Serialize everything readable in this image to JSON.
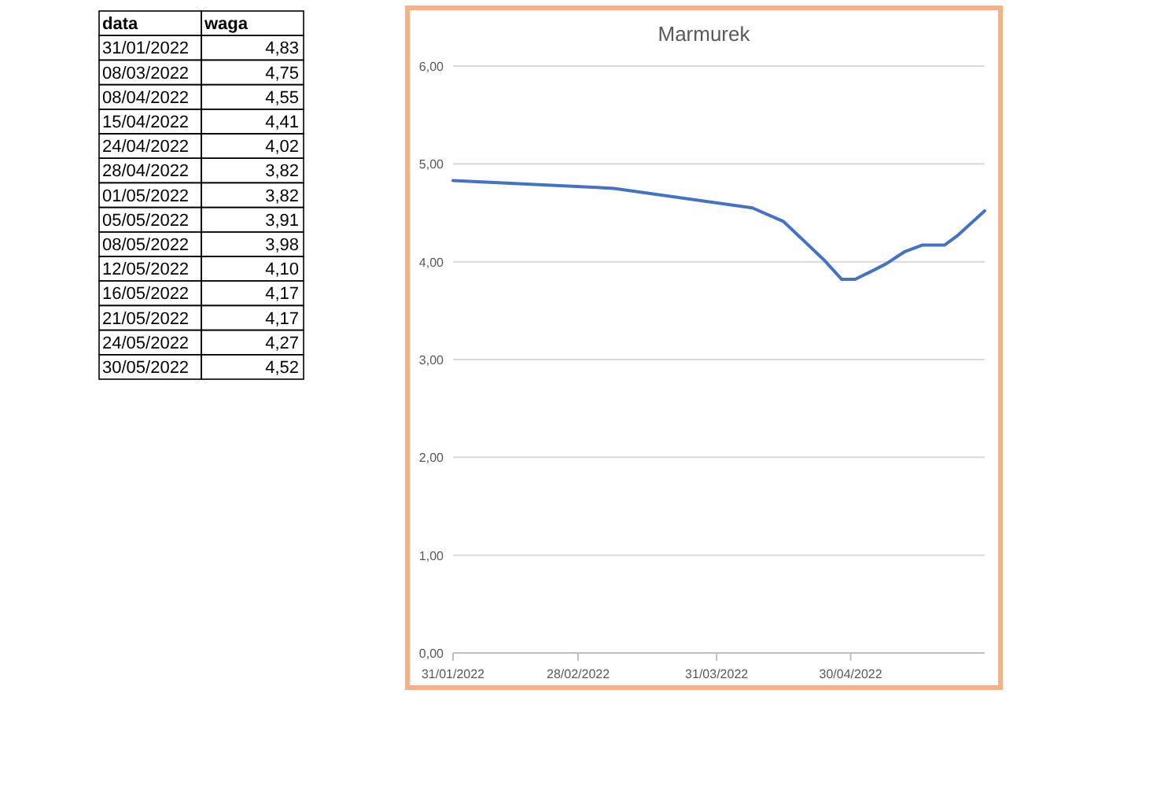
{
  "chart_data": [
    {
      "type": "other",
      "annotations": [
        "data",
        "waga"
      ],
      "categories": [
        "31/01/2022",
        "08/03/2022",
        "08/04/2022",
        "15/04/2022",
        "24/04/2022",
        "28/04/2022",
        "01/05/2022",
        "05/05/2022",
        "08/05/2022",
        "12/05/2022",
        "16/05/2022",
        "21/05/2022",
        "24/05/2022",
        "30/05/2022"
      ],
      "value_labels": [
        "4,83",
        "4,75",
        "4,55",
        "4,41",
        "4,02",
        "3,82",
        "3,82",
        "3,91",
        "3,98",
        "4,10",
        "4,17",
        "4,17",
        "4,27",
        "4,52"
      ]
    },
    {
      "type": "line",
      "title": "Marmurek",
      "x": [
        "2022-01-31",
        "2022-03-08",
        "2022-04-08",
        "2022-04-15",
        "2022-04-24",
        "2022-04-28",
        "2022-05-01",
        "2022-05-05",
        "2022-05-08",
        "2022-05-12",
        "2022-05-16",
        "2022-05-21",
        "2022-05-24",
        "2022-05-30"
      ],
      "series": [
        {
          "color": "#4472c4",
          "values": [
            4.83,
            4.75,
            4.55,
            4.41,
            4.02,
            3.82,
            3.82,
            3.91,
            3.98,
            4.1,
            4.17,
            4.17,
            4.27,
            4.52
          ]
        }
      ],
      "xlim": [
        "2022-01-31",
        "2022-05-30"
      ],
      "xticks": [
        {
          "value": "2022-01-31",
          "label": "31/01/2022"
        },
        {
          "value": "2022-02-28",
          "label": "28/02/2022"
        },
        {
          "value": "2022-03-31",
          "label": "31/03/2022"
        },
        {
          "value": "2022-04-30",
          "label": "30/04/2022"
        }
      ],
      "ylim": [
        0,
        6
      ],
      "yticks": [
        {
          "value": 0,
          "label": "0,00"
        },
        {
          "value": 1,
          "label": "1,00"
        },
        {
          "value": 2,
          "label": "2,00"
        },
        {
          "value": 3,
          "label": "3,00"
        },
        {
          "value": 4,
          "label": "4,00"
        },
        {
          "value": 5,
          "label": "5,00"
        },
        {
          "value": 6,
          "label": "6,00"
        }
      ],
      "grid": "y",
      "marker": "none",
      "line_style": "solid"
    }
  ]
}
